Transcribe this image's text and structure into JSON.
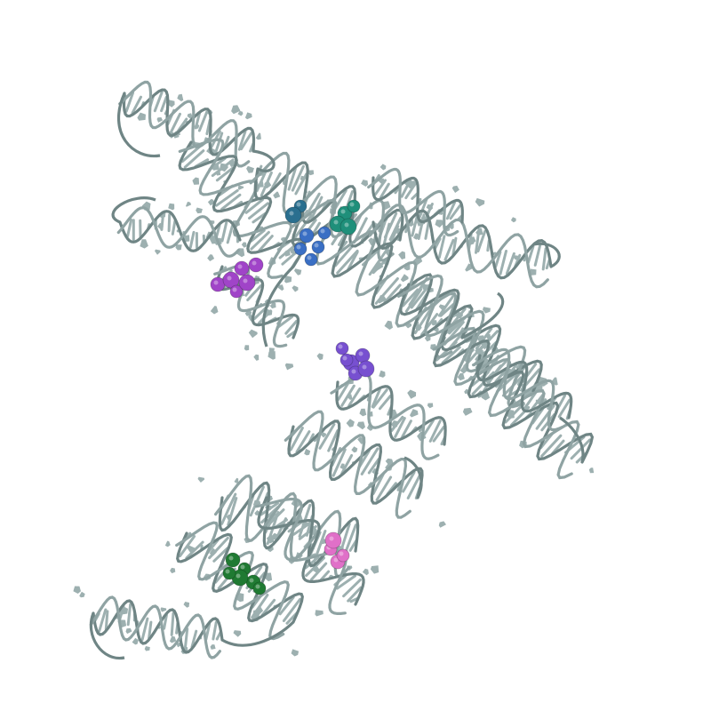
{
  "scene": {
    "subject": "rna-ribbon-structure",
    "colors": {
      "background": "#ffffff",
      "backbone": "#8fa3a3",
      "backbone_dark": "#6f8585",
      "bases": "#9db0b0"
    },
    "ligands": [
      {
        "name": "ligand-teal",
        "color": "#1f8f7a"
      },
      {
        "name": "ligand-blue",
        "color": "#3a6fc4"
      },
      {
        "name": "ligand-dark-teal",
        "color": "#2a6f8f"
      },
      {
        "name": "ligand-magenta",
        "color": "#a044c8"
      },
      {
        "name": "ligand-violet",
        "color": "#7750d0"
      },
      {
        "name": "ligand-green",
        "color": "#1f7a32"
      },
      {
        "name": "ligand-pink",
        "color": "#e070c8"
      }
    ]
  }
}
